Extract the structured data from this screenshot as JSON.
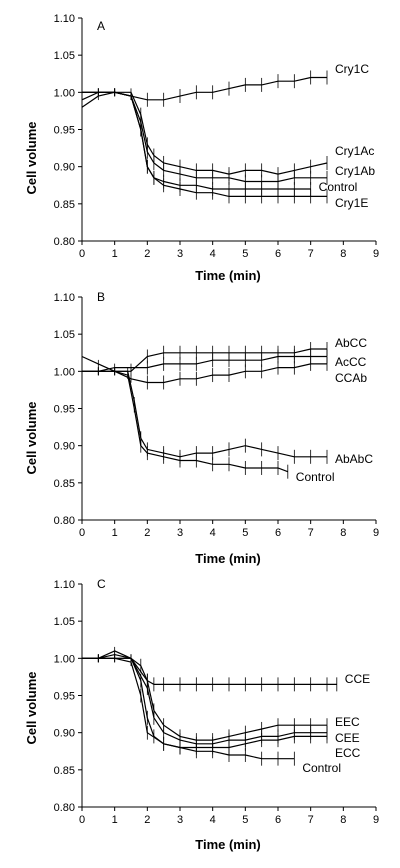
{
  "chart_data": [
    {
      "type": "line",
      "panel_label": "A",
      "xlabel": "Time (min)",
      "ylabel": "Cell volume",
      "xlim": [
        0,
        9
      ],
      "ylim": [
        0.8,
        1.1
      ],
      "xticks": [
        "0",
        "1",
        "2",
        "3",
        "4",
        "5",
        "6",
        "7",
        "8",
        "9"
      ],
      "yticks": [
        "0.80",
        "0.85",
        "0.90",
        "0.95",
        "1.00",
        "1.05",
        "1.10"
      ],
      "series": [
        {
          "name": "Cry1C",
          "x": [
            0,
            0.5,
            1,
            1.5,
            2,
            2.5,
            3,
            3.5,
            4,
            4.5,
            5,
            5.5,
            6,
            6.5,
            7,
            7.5
          ],
          "y": [
            1.0,
            1.0,
            1.0,
            0.995,
            0.99,
            0.99,
            0.995,
            1.0,
            1.0,
            1.005,
            1.01,
            1.01,
            1.015,
            1.015,
            1.02,
            1.02
          ]
        },
        {
          "name": "Cry1Ac",
          "x": [
            0,
            0.5,
            1,
            1.5,
            1.8,
            2,
            2.2,
            2.5,
            3,
            3.5,
            4,
            4.5,
            5,
            5.5,
            6,
            6.5,
            7,
            7.5
          ],
          "y": [
            1.0,
            1.0,
            1.0,
            1.0,
            0.97,
            0.93,
            0.915,
            0.905,
            0.9,
            0.895,
            0.895,
            0.89,
            0.895,
            0.895,
            0.89,
            0.895,
            0.9,
            0.905
          ]
        },
        {
          "name": "Cry1Ab",
          "x": [
            0,
            0.5,
            1,
            1.5,
            1.8,
            2,
            2.2,
            2.5,
            3,
            3.5,
            4,
            4.5,
            5,
            5.5,
            6,
            6.5,
            7,
            7.5
          ],
          "y": [
            1.0,
            1.0,
            1.0,
            0.995,
            0.96,
            0.92,
            0.905,
            0.895,
            0.89,
            0.885,
            0.885,
            0.885,
            0.88,
            0.88,
            0.88,
            0.885,
            0.885,
            0.885
          ]
        },
        {
          "name": "Control",
          "x": [
            0,
            0.5,
            1,
            1.5,
            1.8,
            2,
            2.2,
            2.5,
            3,
            3.5,
            4,
            4.5,
            5,
            5.5,
            6,
            6.5,
            7
          ],
          "y": [
            0.99,
            1.0,
            1.0,
            0.995,
            0.95,
            0.9,
            0.885,
            0.88,
            0.875,
            0.875,
            0.87,
            0.87,
            0.87,
            0.87,
            0.87,
            0.87,
            0.87
          ]
        },
        {
          "name": "Cry1E",
          "x": [
            0,
            0.5,
            1,
            1.5,
            1.8,
            2,
            2.2,
            2.5,
            3,
            3.5,
            4,
            4.5,
            5,
            5.5,
            6,
            6.5,
            7,
            7.5
          ],
          "y": [
            0.98,
            0.995,
            1.0,
            0.995,
            0.95,
            0.9,
            0.885,
            0.875,
            0.87,
            0.865,
            0.865,
            0.86,
            0.86,
            0.86,
            0.86,
            0.86,
            0.86,
            0.86
          ]
        }
      ]
    },
    {
      "type": "line",
      "panel_label": "B",
      "xlabel": "Time (min)",
      "ylabel": "Cell volume",
      "xlim": [
        0,
        9
      ],
      "ylim": [
        0.8,
        1.1
      ],
      "xticks": [
        "0",
        "1",
        "2",
        "3",
        "4",
        "5",
        "6",
        "7",
        "8",
        "9"
      ],
      "yticks": [
        "0.80",
        "0.85",
        "0.90",
        "0.95",
        "1.00",
        "1.05",
        "1.10"
      ],
      "series": [
        {
          "name": "AbCC",
          "x": [
            0,
            0.5,
            1,
            1.5,
            2,
            2.5,
            3,
            3.5,
            4,
            4.5,
            5,
            5.5,
            6,
            6.5,
            7,
            7.5
          ],
          "y": [
            1.0,
            1.0,
            1.0,
            1.0,
            1.02,
            1.025,
            1.025,
            1.025,
            1.025,
            1.025,
            1.025,
            1.025,
            1.025,
            1.025,
            1.03,
            1.03
          ]
        },
        {
          "name": "AcCC",
          "x": [
            0,
            0.5,
            1,
            1.5,
            2,
            2.5,
            3,
            3.5,
            4,
            4.5,
            5,
            5.5,
            6,
            6.5,
            7,
            7.5
          ],
          "y": [
            1.0,
            1.0,
            1.005,
            1.005,
            1.005,
            1.01,
            1.01,
            1.01,
            1.015,
            1.015,
            1.015,
            1.015,
            1.02,
            1.02,
            1.02,
            1.02
          ]
        },
        {
          "name": "CCAb",
          "x": [
            0,
            0.5,
            1,
            1.5,
            2,
            2.5,
            3,
            3.5,
            4,
            4.5,
            5,
            5.5,
            6,
            6.5,
            7,
            7.5
          ],
          "y": [
            1.02,
            1.01,
            1.0,
            0.99,
            0.985,
            0.985,
            0.99,
            0.99,
            0.995,
            0.995,
            1.0,
            1.0,
            1.005,
            1.005,
            1.01,
            1.01
          ]
        },
        {
          "name": "AbAbC",
          "x": [
            0,
            0.5,
            1,
            1.4,
            1.6,
            1.8,
            2,
            2.5,
            3,
            3.5,
            4,
            4.5,
            5,
            5.5,
            6,
            6.5,
            7,
            7.5
          ],
          "y": [
            1.0,
            1.0,
            1.0,
            1.0,
            0.96,
            0.91,
            0.895,
            0.89,
            0.885,
            0.89,
            0.89,
            0.895,
            0.9,
            0.895,
            0.89,
            0.885,
            0.885,
            0.885
          ]
        },
        {
          "name": "Control",
          "x": [
            0,
            0.5,
            1,
            1.4,
            1.6,
            1.8,
            2,
            2.5,
            3,
            3.5,
            4,
            4.5,
            5,
            5.5,
            6,
            6.3
          ],
          "y": [
            1.0,
            1.0,
            1.0,
            0.995,
            0.95,
            0.9,
            0.89,
            0.885,
            0.88,
            0.88,
            0.875,
            0.875,
            0.87,
            0.87,
            0.87,
            0.865
          ]
        }
      ]
    },
    {
      "type": "line",
      "panel_label": "C",
      "xlabel": "Time (min)",
      "ylabel": "Cell volume",
      "xlim": [
        0,
        9
      ],
      "ylim": [
        0.8,
        1.1
      ],
      "xticks": [
        "0",
        "1",
        "2",
        "3",
        "4",
        "5",
        "6",
        "7",
        "8",
        "9"
      ],
      "yticks": [
        "0.80",
        "0.85",
        "0.90",
        "0.95",
        "1.00",
        "1.05",
        "1.10"
      ],
      "series": [
        {
          "name": "CCE",
          "x": [
            0,
            0.5,
            1,
            1.5,
            1.8,
            2,
            2.2,
            2.5,
            3,
            3.5,
            4,
            4.5,
            5,
            5.5,
            6,
            6.5,
            7,
            7.5,
            7.8
          ],
          "y": [
            1.0,
            1.0,
            1.0,
            1.0,
            0.99,
            0.97,
            0.965,
            0.965,
            0.965,
            0.965,
            0.965,
            0.965,
            0.965,
            0.965,
            0.965,
            0.965,
            0.965,
            0.965,
            0.965
          ]
        },
        {
          "name": "EEC",
          "x": [
            0,
            0.5,
            1,
            1.5,
            2,
            2.2,
            2.5,
            3,
            3.5,
            4,
            4.5,
            5,
            5.5,
            6,
            6.5,
            7,
            7.5
          ],
          "y": [
            1.0,
            1.0,
            1.01,
            1.0,
            0.97,
            0.93,
            0.91,
            0.895,
            0.89,
            0.89,
            0.895,
            0.9,
            0.905,
            0.91,
            0.91,
            0.91,
            0.91
          ]
        },
        {
          "name": "CEE",
          "x": [
            0,
            0.5,
            1,
            1.5,
            2,
            2.2,
            2.5,
            3,
            3.5,
            4,
            4.5,
            5,
            5.5,
            6,
            6.5,
            7,
            7.5
          ],
          "y": [
            1.0,
            1.0,
            1.005,
            1.0,
            0.96,
            0.92,
            0.9,
            0.89,
            0.885,
            0.885,
            0.89,
            0.89,
            0.895,
            0.895,
            0.9,
            0.9,
            0.9
          ]
        },
        {
          "name": "ECC",
          "x": [
            0,
            0.5,
            1,
            1.5,
            1.8,
            2,
            2.2,
            2.5,
            3,
            3.5,
            4,
            4.5,
            5,
            5.5,
            6,
            6.5,
            7,
            7.5
          ],
          "y": [
            1.0,
            1.0,
            1.0,
            1.0,
            0.97,
            0.92,
            0.895,
            0.885,
            0.88,
            0.88,
            0.88,
            0.88,
            0.885,
            0.89,
            0.89,
            0.895,
            0.895,
            0.895
          ]
        },
        {
          "name": "Control",
          "x": [
            0,
            0.5,
            1,
            1.5,
            1.8,
            2,
            2.5,
            3,
            3.5,
            4,
            4.5,
            5,
            5.5,
            6,
            6.5
          ],
          "y": [
            1.0,
            1.0,
            1.0,
            0.995,
            0.95,
            0.9,
            0.885,
            0.88,
            0.875,
            0.875,
            0.87,
            0.87,
            0.865,
            0.865,
            0.865
          ]
        }
      ]
    }
  ]
}
